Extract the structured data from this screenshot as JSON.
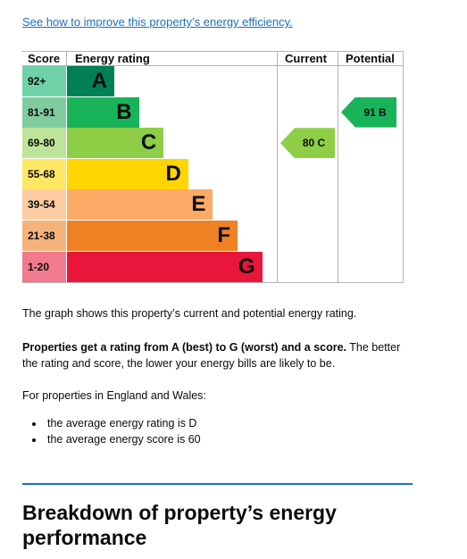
{
  "link": {
    "text": "See how to improve this property’s energy efficiency."
  },
  "epc": {
    "headers": {
      "score": "Score",
      "rating": "Energy rating",
      "current": "Current",
      "potential": "Potential"
    },
    "bands": [
      {
        "score": "92+",
        "letter": "A",
        "color": "#008054",
        "score_bg": "#6ed1a8"
      },
      {
        "score": "81-91",
        "letter": "B",
        "color": "#19b459",
        "score_bg": "#80cc9e"
      },
      {
        "score": "69-80",
        "letter": "C",
        "color": "#8dce46",
        "score_bg": "#bee49c"
      },
      {
        "score": "55-68",
        "letter": "D",
        "color": "#ffd500",
        "score_bg": "#ffe766"
      },
      {
        "score": "39-54",
        "letter": "E",
        "color": "#fcaa65",
        "score_bg": "#fdcca2"
      },
      {
        "score": "21-38",
        "letter": "F",
        "color": "#ef8023",
        "score_bg": "#f5b37b"
      },
      {
        "score": "1-20",
        "letter": "G",
        "color": "#e9153b",
        "score_bg": "#f27a8f"
      }
    ],
    "current": {
      "label": "80 C",
      "score": 80,
      "rating": "C",
      "color": "#8dce46"
    },
    "potential": {
      "label": "91 B",
      "score": 91,
      "rating": "B",
      "color": "#19b459"
    }
  },
  "text": {
    "graph_desc": "The graph shows this property’s current and potential energy rating.",
    "ratings_bold": "Properties get a rating from A (best) to G (worst) and a score.",
    "ratings_rest": " The better the rating and score, the lower your energy bills are likely to be.",
    "england_wales": "For properties in England and Wales:",
    "bullets": [
      "the average energy rating is D",
      "the average energy score is 60"
    ],
    "heading": "Breakdown of property’s energy performance"
  }
}
